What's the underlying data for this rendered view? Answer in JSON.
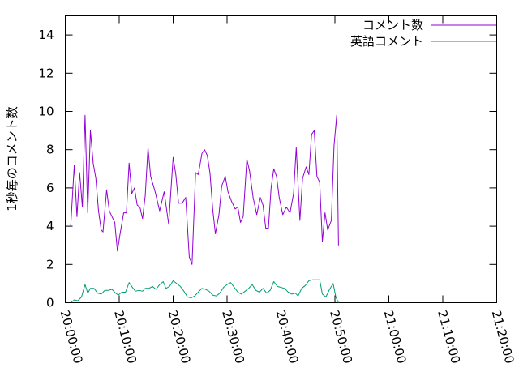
{
  "chart_data": {
    "type": "line",
    "ylabel": "1秒毎のコメント数",
    "xlabel": "",
    "ylim": [
      0,
      15
    ],
    "xlim": [
      "20:00:00",
      "21:20:00"
    ],
    "yticks": [
      0,
      2,
      4,
      6,
      8,
      10,
      12,
      14
    ],
    "xticks": [
      "20:00:00",
      "20:10:00",
      "20:20:00",
      "20:30:00",
      "20:40:00",
      "20:50:00",
      "21:00:00",
      "21:10:00",
      "21:20:00"
    ],
    "legend_position": "top-right",
    "grid": false,
    "series": [
      {
        "name": "コメント数",
        "color": "#9400d3",
        "points": [
          [
            "20:01:00",
            4.0
          ],
          [
            "20:01:40",
            7.2
          ],
          [
            "20:02:10",
            4.5
          ],
          [
            "20:02:40",
            6.8
          ],
          [
            "20:03:10",
            5.0
          ],
          [
            "20:03:40",
            9.8
          ],
          [
            "20:04:10",
            4.7
          ],
          [
            "20:04:40",
            9.0
          ],
          [
            "20:05:10",
            7.3
          ],
          [
            "20:05:40",
            6.5
          ],
          [
            "20:06:10",
            4.8
          ],
          [
            "20:06:40",
            3.8
          ],
          [
            "20:07:00",
            3.7
          ],
          [
            "20:07:40",
            5.9
          ],
          [
            "20:08:10",
            4.8
          ],
          [
            "20:08:40",
            4.5
          ],
          [
            "20:09:10",
            4.2
          ],
          [
            "20:09:40",
            2.7
          ],
          [
            "20:10:10",
            3.6
          ],
          [
            "20:10:50",
            4.7
          ],
          [
            "20:11:20",
            4.7
          ],
          [
            "20:11:50",
            7.3
          ],
          [
            "20:12:20",
            5.7
          ],
          [
            "20:12:50",
            6.0
          ],
          [
            "20:13:20",
            5.1
          ],
          [
            "20:13:50",
            5.0
          ],
          [
            "20:14:20",
            4.4
          ],
          [
            "20:14:50",
            5.6
          ],
          [
            "20:15:20",
            8.1
          ],
          [
            "20:15:50",
            6.6
          ],
          [
            "20:16:40",
            5.8
          ],
          [
            "20:17:30",
            4.8
          ],
          [
            "20:18:20",
            5.8
          ],
          [
            "20:19:10",
            4.1
          ],
          [
            "20:20:00",
            7.6
          ],
          [
            "20:20:30",
            6.7
          ],
          [
            "20:21:00",
            5.2
          ],
          [
            "20:21:40",
            5.2
          ],
          [
            "20:22:20",
            5.5
          ],
          [
            "20:23:00",
            2.4
          ],
          [
            "20:23:30",
            2.0
          ],
          [
            "20:24:10",
            6.8
          ],
          [
            "20:24:40",
            6.7
          ],
          [
            "20:25:20",
            7.8
          ],
          [
            "20:25:50",
            8.0
          ],
          [
            "20:26:20",
            7.7
          ],
          [
            "20:26:50",
            6.8
          ],
          [
            "20:27:20",
            4.9
          ],
          [
            "20:27:50",
            3.6
          ],
          [
            "20:28:30",
            4.6
          ],
          [
            "20:29:00",
            6.1
          ],
          [
            "20:29:40",
            6.6
          ],
          [
            "20:30:10",
            5.8
          ],
          [
            "20:30:50",
            5.3
          ],
          [
            "20:31:30",
            4.9
          ],
          [
            "20:32:00",
            5.0
          ],
          [
            "20:32:30",
            4.2
          ],
          [
            "20:33:00",
            4.5
          ],
          [
            "20:33:40",
            7.5
          ],
          [
            "20:34:10",
            6.9
          ],
          [
            "20:34:50",
            5.5
          ],
          [
            "20:35:30",
            4.6
          ],
          [
            "20:36:10",
            5.5
          ],
          [
            "20:36:40",
            5.1
          ],
          [
            "20:37:10",
            3.9
          ],
          [
            "20:37:40",
            3.9
          ],
          [
            "20:38:10",
            6.0
          ],
          [
            "20:38:40",
            7.0
          ],
          [
            "20:39:10",
            6.6
          ],
          [
            "20:39:40",
            5.5
          ],
          [
            "20:40:20",
            4.6
          ],
          [
            "20:41:00",
            5.0
          ],
          [
            "20:41:40",
            4.7
          ],
          [
            "20:42:20",
            5.7
          ],
          [
            "20:42:50",
            8.1
          ],
          [
            "20:43:30",
            4.3
          ],
          [
            "20:44:00",
            6.5
          ],
          [
            "20:44:40",
            7.1
          ],
          [
            "20:45:10",
            6.7
          ],
          [
            "20:45:40",
            8.8
          ],
          [
            "20:46:10",
            9.0
          ],
          [
            "20:46:40",
            6.6
          ],
          [
            "20:47:10",
            6.3
          ],
          [
            "20:47:40",
            3.2
          ],
          [
            "20:48:10",
            4.7
          ],
          [
            "20:48:40",
            3.8
          ],
          [
            "20:49:20",
            4.3
          ],
          [
            "20:49:50",
            8.2
          ],
          [
            "20:50:20",
            9.8
          ],
          [
            "20:50:40",
            3.0
          ]
        ]
      },
      {
        "name": "英語コメント",
        "color": "#009e73",
        "points": [
          [
            "20:01:00",
            0.0
          ],
          [
            "20:01:40",
            0.15
          ],
          [
            "20:02:20",
            0.1
          ],
          [
            "20:03:00",
            0.3
          ],
          [
            "20:03:40",
            0.95
          ],
          [
            "20:04:10",
            0.5
          ],
          [
            "20:04:40",
            0.75
          ],
          [
            "20:05:20",
            0.75
          ],
          [
            "20:06:00",
            0.5
          ],
          [
            "20:06:40",
            0.45
          ],
          [
            "20:07:20",
            0.65
          ],
          [
            "20:08:00",
            0.65
          ],
          [
            "20:08:40",
            0.7
          ],
          [
            "20:09:20",
            0.5
          ],
          [
            "20:09:50",
            0.4
          ],
          [
            "20:10:30",
            0.55
          ],
          [
            "20:11:10",
            0.55
          ],
          [
            "20:11:50",
            1.05
          ],
          [
            "20:12:20",
            0.85
          ],
          [
            "20:13:00",
            0.6
          ],
          [
            "20:13:40",
            0.65
          ],
          [
            "20:14:20",
            0.6
          ],
          [
            "20:14:50",
            0.75
          ],
          [
            "20:15:30",
            0.75
          ],
          [
            "20:16:10",
            0.85
          ],
          [
            "20:16:50",
            0.7
          ],
          [
            "20:17:30",
            0.95
          ],
          [
            "20:18:10",
            1.1
          ],
          [
            "20:18:40",
            0.75
          ],
          [
            "20:19:20",
            0.85
          ],
          [
            "20:20:00",
            1.15
          ],
          [
            "20:20:40",
            1.0
          ],
          [
            "20:21:20",
            0.85
          ],
          [
            "20:22:00",
            0.6
          ],
          [
            "20:22:40",
            0.3
          ],
          [
            "20:23:20",
            0.25
          ],
          [
            "20:24:00",
            0.35
          ],
          [
            "20:24:40",
            0.55
          ],
          [
            "20:25:20",
            0.75
          ],
          [
            "20:26:00",
            0.7
          ],
          [
            "20:26:40",
            0.6
          ],
          [
            "20:27:20",
            0.4
          ],
          [
            "20:28:00",
            0.35
          ],
          [
            "20:28:40",
            0.5
          ],
          [
            "20:29:20",
            0.8
          ],
          [
            "20:30:00",
            0.95
          ],
          [
            "20:30:40",
            1.05
          ],
          [
            "20:31:20",
            0.8
          ],
          [
            "20:32:00",
            0.55
          ],
          [
            "20:32:40",
            0.45
          ],
          [
            "20:33:20",
            0.6
          ],
          [
            "20:34:00",
            0.75
          ],
          [
            "20:34:40",
            0.95
          ],
          [
            "20:35:20",
            0.65
          ],
          [
            "20:36:00",
            0.55
          ],
          [
            "20:36:40",
            0.75
          ],
          [
            "20:37:20",
            0.5
          ],
          [
            "20:38:00",
            0.65
          ],
          [
            "20:38:40",
            1.1
          ],
          [
            "20:39:20",
            0.85
          ],
          [
            "20:40:00",
            0.8
          ],
          [
            "20:40:40",
            0.75
          ],
          [
            "20:41:20",
            0.55
          ],
          [
            "20:42:00",
            0.45
          ],
          [
            "20:42:40",
            0.5
          ],
          [
            "20:43:10",
            0.35
          ],
          [
            "20:43:50",
            0.75
          ],
          [
            "20:44:30",
            0.9
          ],
          [
            "20:45:10",
            1.15
          ],
          [
            "20:45:50",
            1.2
          ],
          [
            "20:46:30",
            1.2
          ],
          [
            "20:47:10",
            1.2
          ],
          [
            "20:47:40",
            0.45
          ],
          [
            "20:48:20",
            0.3
          ],
          [
            "20:49:00",
            0.7
          ],
          [
            "20:49:40",
            1.0
          ],
          [
            "20:50:10",
            0.3
          ],
          [
            "20:50:40",
            0.0
          ]
        ]
      }
    ]
  }
}
